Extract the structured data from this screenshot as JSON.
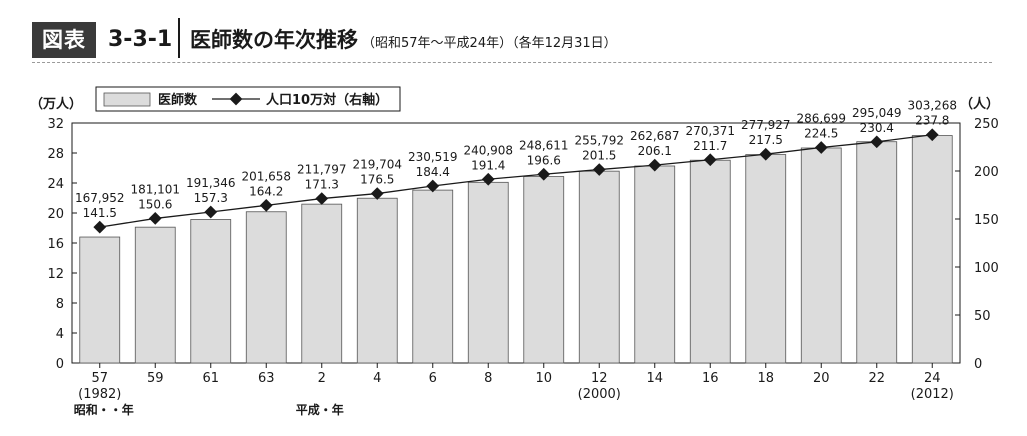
{
  "header": {
    "badge": "図表",
    "figure_number": "3-3-1",
    "title": "医師数の年次推移",
    "subtitle": "（昭和57年〜平成24年）（各年12月31日）"
  },
  "chart_data": {
    "type": "bar",
    "categories": [
      "57",
      "59",
      "61",
      "63",
      "2",
      "4",
      "6",
      "8",
      "10",
      "12",
      "14",
      "16",
      "18",
      "20",
      "22",
      "24"
    ],
    "category_sublabels": [
      "(1982)",
      "",
      "",
      "",
      "",
      "",
      "",
      "",
      "",
      "(2000)",
      "",
      "",
      "",
      "",
      "",
      "(2012)"
    ],
    "era_labels": [
      {
        "text": "昭和・・年",
        "category_index": 0
      },
      {
        "text": "平成・年",
        "category_index": 4
      }
    ],
    "series": [
      {
        "name": "医師数",
        "type": "bar",
        "axis": "left",
        "values": [
          167952,
          181101,
          191346,
          201658,
          211797,
          219704,
          230519,
          240908,
          248611,
          255792,
          262687,
          270371,
          277927,
          286699,
          295049,
          303268
        ],
        "labels": [
          "167,952",
          "181,101",
          "191,346",
          "201,658",
          "211,797",
          "219,704",
          "230,519",
          "240,908",
          "248,611",
          "255,792",
          "262,687",
          "270,371",
          "277,927",
          "286,699",
          "295,049",
          "303,268"
        ],
        "color": "#dcdcdc"
      },
      {
        "name": "人口10万対（右軸）",
        "type": "line",
        "axis": "right",
        "values": [
          141.5,
          150.6,
          157.3,
          164.2,
          171.3,
          176.5,
          184.4,
          191.4,
          196.6,
          201.5,
          206.1,
          211.7,
          217.5,
          224.5,
          230.4,
          237.8
        ],
        "labels": [
          "141.5",
          "150.6",
          "157.3",
          "164.2",
          "171.3",
          "176.5",
          "184.4",
          "191.4",
          "196.6",
          "201.5",
          "206.1",
          "211.7",
          "217.5",
          "224.5",
          "230.4",
          "237.8"
        ],
        "color": "#1a1a1a"
      }
    ],
    "y_left": {
      "unit_label": "（万人）",
      "ylim": [
        0,
        32
      ],
      "ticks": [
        0,
        4,
        8,
        12,
        16,
        20,
        24,
        28,
        32
      ],
      "tick_labels": [
        "0",
        "4",
        "8",
        "12",
        "16",
        "20",
        "24",
        "28",
        "32"
      ],
      "divisor": 10000
    },
    "y_right": {
      "unit_label": "（人）",
      "ylim": [
        0,
        250
      ],
      "ticks": [
        0,
        50,
        100,
        150,
        200,
        250
      ],
      "tick_labels": [
        "0",
        "50",
        "100",
        "150",
        "200",
        "250"
      ]
    },
    "grid": false,
    "legend_placement": "top-left"
  }
}
